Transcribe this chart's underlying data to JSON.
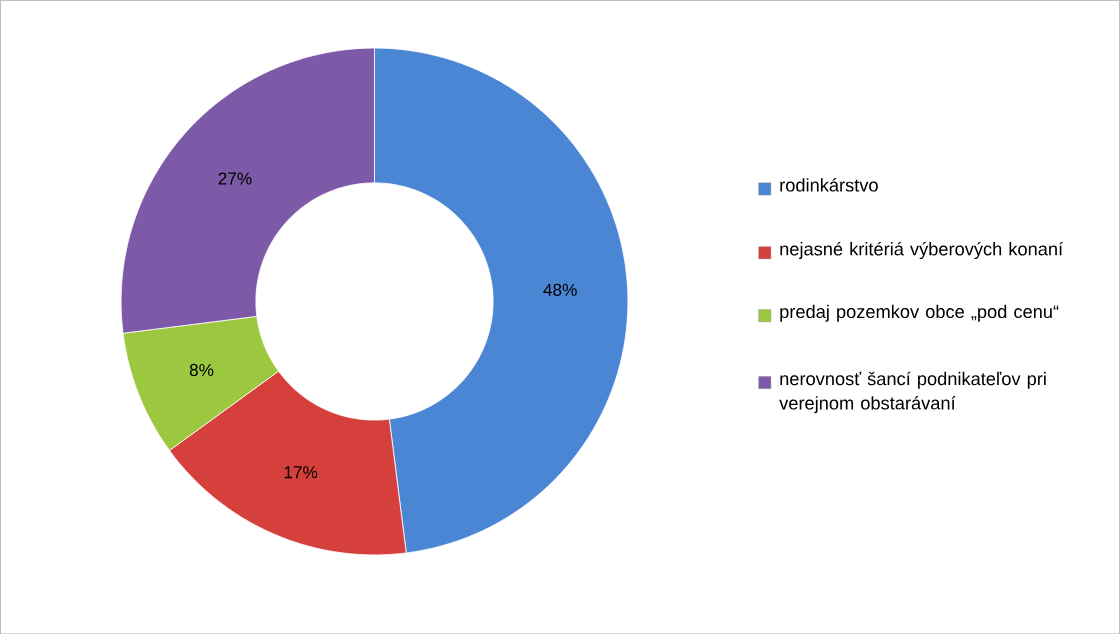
{
  "chart_data": {
    "type": "donut",
    "categories": [
      "rodinkárstvo",
      "nejasné kritériá výberových konaní",
      "predaj pozemkov obce „pod cenu“",
      "nerovnosť šancí podnikateľov pri verejnom obstarávaní"
    ],
    "values": [
      48,
      17,
      8,
      27
    ],
    "value_labels": [
      "48%",
      "17%",
      "8%",
      "27%"
    ],
    "colors": [
      "#4a86d4",
      "#d6403c",
      "#9cc83f",
      "#7d5aa8"
    ],
    "legend": "right"
  }
}
